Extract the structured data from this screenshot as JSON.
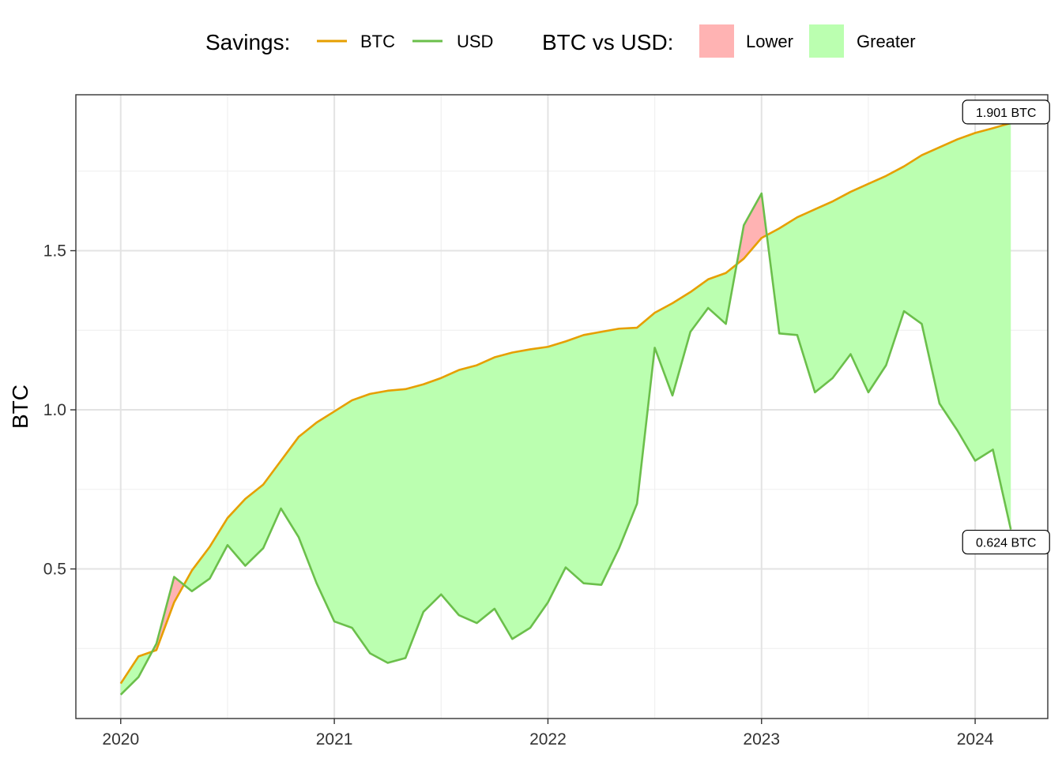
{
  "legend": {
    "savings_title": "Savings:",
    "btc_label": "BTC",
    "usd_label": "USD",
    "compare_title": "BTC vs USD:",
    "lower_label": "Lower",
    "greater_label": "Greater"
  },
  "colors": {
    "btc_line": "#E69F00",
    "usd_line": "#6BBF4B",
    "lower_fill": "#FFB3B3",
    "greater_fill": "#BBFFB0",
    "grid_major": "#E3E3E3",
    "grid_minor": "#F0F0F0"
  },
  "chart_data": {
    "type": "line",
    "xlabel": "",
    "ylabel": "BTC",
    "x_ticks": [
      "2020",
      "2021",
      "2022",
      "2023",
      "2024"
    ],
    "y_ticks": [
      "0.5",
      "1.0",
      "1.5"
    ],
    "xlim": [
      2019.79,
      2024.34
    ],
    "ylim": [
      0.03,
      1.99
    ],
    "grid": true,
    "legend_position": "top",
    "x": [
      2020.0,
      2020.083,
      2020.167,
      2020.25,
      2020.333,
      2020.417,
      2020.5,
      2020.583,
      2020.667,
      2020.75,
      2020.833,
      2020.917,
      2021.0,
      2021.083,
      2021.167,
      2021.25,
      2021.333,
      2021.417,
      2021.5,
      2021.583,
      2021.667,
      2021.75,
      2021.833,
      2021.917,
      2022.0,
      2022.083,
      2022.167,
      2022.25,
      2022.333,
      2022.417,
      2022.5,
      2022.583,
      2022.667,
      2022.75,
      2022.833,
      2022.917,
      2023.0,
      2023.083,
      2023.167,
      2023.25,
      2023.333,
      2023.417,
      2023.5,
      2023.583,
      2023.667,
      2023.75,
      2023.833,
      2023.917,
      2024.0,
      2024.083,
      2024.167
    ],
    "series": [
      {
        "name": "BTC",
        "values": [
          0.14,
          0.225,
          0.245,
          0.395,
          0.495,
          0.57,
          0.66,
          0.72,
          0.765,
          0.84,
          0.915,
          0.96,
          0.995,
          1.03,
          1.05,
          1.06,
          1.065,
          1.08,
          1.1,
          1.125,
          1.14,
          1.165,
          1.18,
          1.19,
          1.198,
          1.215,
          1.235,
          1.245,
          1.255,
          1.258,
          1.305,
          1.335,
          1.37,
          1.41,
          1.43,
          1.475,
          1.54,
          1.57,
          1.605,
          1.63,
          1.655,
          1.685,
          1.71,
          1.735,
          1.765,
          1.8,
          1.825,
          1.85,
          1.87,
          1.885,
          1.901
        ]
      },
      {
        "name": "USD",
        "values": [
          0.105,
          0.16,
          0.265,
          0.475,
          0.43,
          0.47,
          0.575,
          0.51,
          0.565,
          0.69,
          0.6,
          0.455,
          0.335,
          0.315,
          0.235,
          0.205,
          0.22,
          0.365,
          0.42,
          0.355,
          0.33,
          0.375,
          0.28,
          0.315,
          0.395,
          0.505,
          0.455,
          0.45,
          0.565,
          0.705,
          1.195,
          1.045,
          1.245,
          1.32,
          1.27,
          1.58,
          1.68,
          1.24,
          1.235,
          1.055,
          1.1,
          1.175,
          1.055,
          1.14,
          1.31,
          1.27,
          1.02,
          0.935,
          0.84,
          0.875,
          0.624
        ]
      }
    ],
    "annotations": [
      {
        "series": "BTC",
        "text": "1.901 BTC"
      },
      {
        "series": "USD",
        "text": "0.624 BTC"
      }
    ]
  }
}
